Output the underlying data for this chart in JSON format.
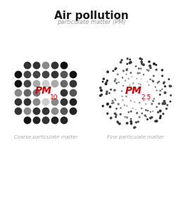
{
  "title": "Air pollution",
  "subtitle": "particulate matter (PM)",
  "label_left": "Coarse particulate matter",
  "label_right": "Fine particulate matter",
  "pm10_text": "PM",
  "pm10_sub": "10",
  "pm25_text": "PM",
  "pm25_sub": "2.5",
  "bg_color": "#ffffff",
  "title_color": "#1a1a1a",
  "subtitle_color": "#999999",
  "pm_label_color": "#cc0000",
  "caption_color": "#aaaaaa",
  "figsize": [
    2.6,
    2.8
  ],
  "dpi": 100
}
